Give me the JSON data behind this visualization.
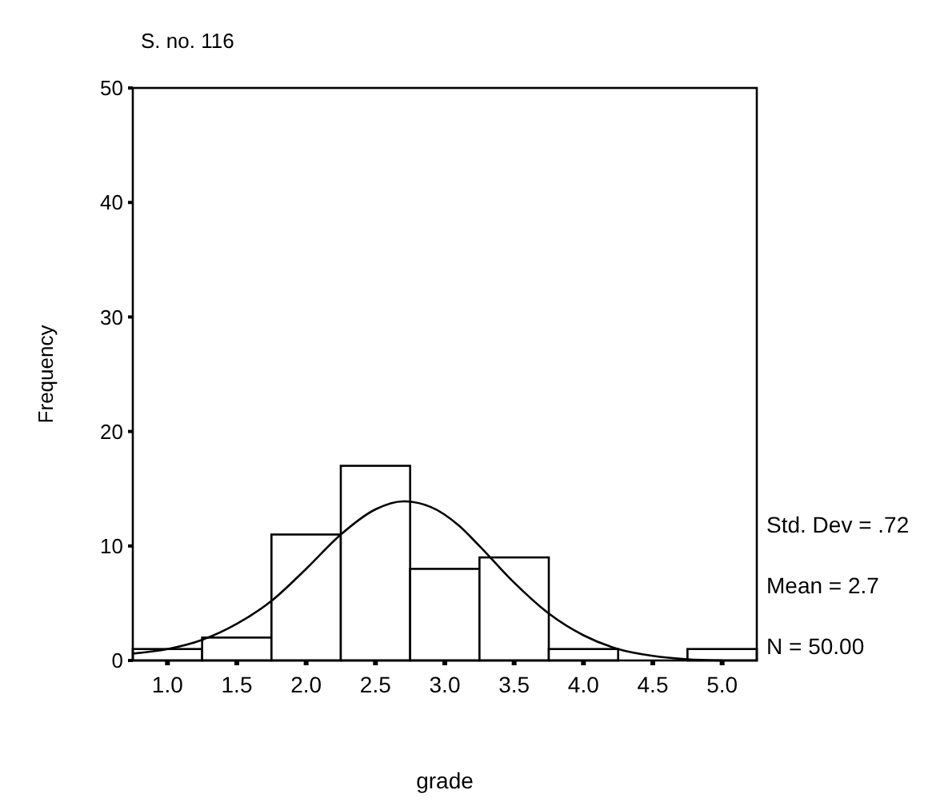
{
  "chart_data": {
    "type": "histogram",
    "title": "S. no. 116",
    "xlabel": "grade",
    "ylabel": "Frequency",
    "bins": [
      0.75,
      1.25,
      1.75,
      2.25,
      2.75,
      3.25,
      3.75,
      4.25,
      4.75,
      5.25
    ],
    "values": [
      1,
      2,
      11,
      17,
      8,
      9,
      1,
      0,
      1
    ],
    "color": "#ffffff",
    "series": [
      {
        "type": "line",
        "color": "#000000",
        "x": [
          0.75,
          1.0,
          1.25,
          1.5,
          1.75,
          2.0,
          2.25,
          2.5,
          2.7,
          2.9,
          3.1,
          3.25,
          3.5,
          3.75,
          4.0,
          4.25,
          4.5,
          4.75,
          5.0
        ],
        "values": [
          0.6,
          1.0,
          1.8,
          3.2,
          5.2,
          8.0,
          11.0,
          13.2,
          13.9,
          13.4,
          11.8,
          10.0,
          6.8,
          4.1,
          2.2,
          1.0,
          0.4,
          0.1,
          0.0
        ]
      }
    ],
    "xlim": [
      0.75,
      5.25
    ],
    "xticks": [
      {
        "value": 1,
        "label": "1.0"
      },
      {
        "value": 1.5,
        "label": "1.5"
      },
      {
        "value": 2,
        "label": "2.0"
      },
      {
        "value": 2.5,
        "label": "2.5"
      },
      {
        "value": 3,
        "label": "3.0"
      },
      {
        "value": 3.5,
        "label": "3.5"
      },
      {
        "value": 4,
        "label": "4.0"
      },
      {
        "value": 4.5,
        "label": "4.5"
      },
      {
        "value": 5,
        "label": "5.0"
      }
    ],
    "ylim": [
      0,
      50
    ],
    "yticks": [
      0,
      10,
      20,
      30,
      40,
      50
    ],
    "annotations": [
      "Std. Dev = .72",
      "Mean = 2.7",
      "N = 50.00"
    ],
    "marker": "none",
    "line_style": "solid"
  }
}
